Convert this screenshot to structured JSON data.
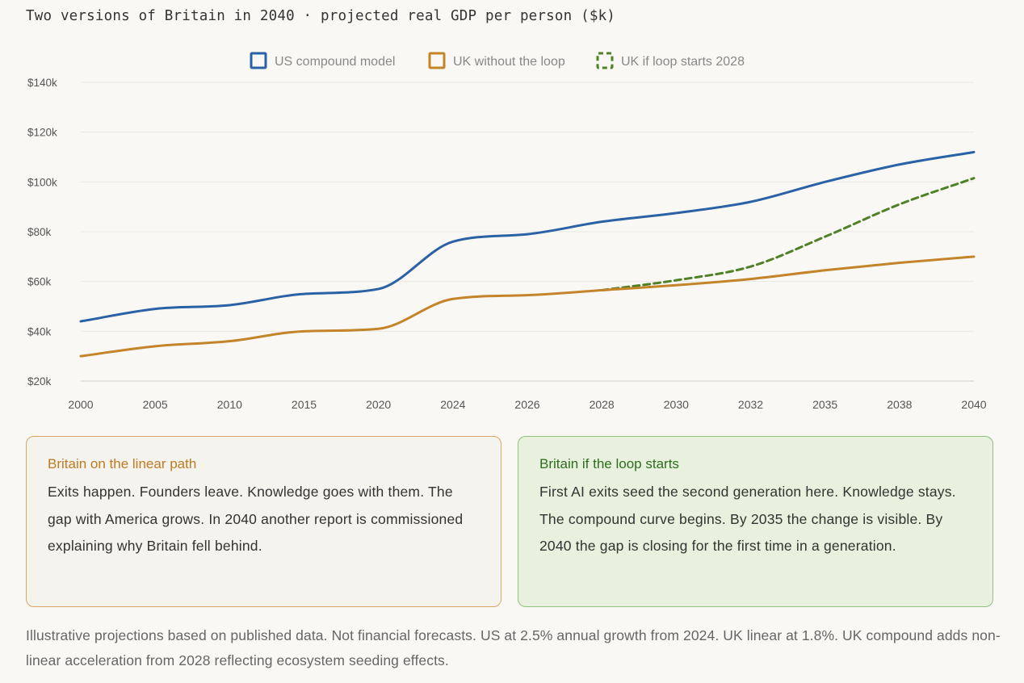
{
  "title": "Two versions of Britain in 2040 · projected real GDP per person ($k)",
  "chart_data": {
    "type": "line",
    "title": "Two versions of Britain in 2040 · projected real GDP per person ($k)",
    "xlabel": "",
    "ylabel": "",
    "categories": [
      "2000",
      "2005",
      "2010",
      "2015",
      "2020",
      "2024",
      "2026",
      "2028",
      "2030",
      "2032",
      "2035",
      "2038",
      "2040"
    ],
    "ylim": [
      20,
      140
    ],
    "yticks": [
      20,
      40,
      60,
      80,
      100,
      120,
      140
    ],
    "ytick_labels": [
      "$20k",
      "$40k",
      "$60k",
      "$80k",
      "$100k",
      "$120k",
      "$140k"
    ],
    "grid": true,
    "legend_position": "top-center",
    "series": [
      {
        "name": "US compound model",
        "color": "#2b62a6",
        "style": "solid",
        "values": [
          44,
          49,
          50.5,
          55,
          57,
          76,
          79,
          84,
          87.5,
          92,
          100,
          107,
          112
        ]
      },
      {
        "name": "UK without the loop",
        "color": "#c48429",
        "style": "solid",
        "values": [
          30,
          34,
          36,
          40,
          41,
          53,
          54.5,
          56.5,
          58.5,
          61,
          64.5,
          67.5,
          70
        ]
      },
      {
        "name": "UK if loop starts 2028",
        "color": "#4f8127",
        "style": "dashed",
        "values": [
          null,
          null,
          null,
          null,
          null,
          null,
          null,
          56.5,
          60.5,
          66,
          78,
          91,
          101.5
        ]
      }
    ]
  },
  "cards": {
    "left": {
      "title": "Britain on the linear path",
      "body": "Exits happen. Founders leave. Knowledge goes with them. The gap with America grows. In 2040 another report is commissioned explaining why Britain fell behind."
    },
    "right": {
      "title": "Britain if the loop starts",
      "body": "First AI exits seed the second generation here. Knowledge stays. The compound curve begins. By 2035 the change is visible. By 2040 the gap is closing for the first time in a generation."
    }
  },
  "footnote": "Illustrative projections based on published data. Not financial forecasts. US at 2.5% annual growth from 2024. UK linear at 1.8%. UK compound adds non-linear acceleration from 2028 reflecting ecosystem seeding effects."
}
